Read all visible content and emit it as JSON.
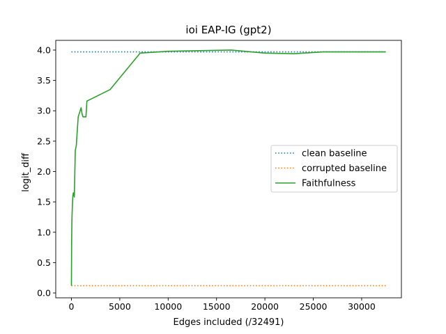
{
  "chart_data": {
    "type": "line",
    "title": "ioi EAP-IG (gpt2)",
    "xlabel": "Edges included (/32491)",
    "ylabel": "logit_diff",
    "xlim": [
      -1620,
      34110
    ],
    "ylim": [
      -0.08,
      4.16
    ],
    "xticks": [
      0,
      5000,
      10000,
      15000,
      20000,
      25000,
      30000
    ],
    "yticks": [
      0.0,
      0.5,
      1.0,
      1.5,
      2.0,
      2.5,
      3.0,
      3.5,
      4.0
    ],
    "grid": false,
    "legend_placement": "center-right",
    "series": [
      {
        "name": "clean baseline",
        "style": "dotted",
        "color": "#1f77b4",
        "x": [
          0,
          32491
        ],
        "y": [
          3.97,
          3.97
        ]
      },
      {
        "name": "corrupted baseline",
        "style": "dotted",
        "color": "#ff7f0e",
        "x": [
          0,
          32491
        ],
        "y": [
          0.12,
          0.12
        ]
      },
      {
        "name": "Faithfulness",
        "style": "solid",
        "color": "#2ca02c",
        "x": [
          0,
          20,
          50,
          100,
          150,
          200,
          250,
          300,
          400,
          500,
          700,
          900,
          1000,
          1100,
          1200,
          1500,
          1600,
          4000,
          7100,
          10000,
          16500,
          20000,
          23000,
          26000,
          32491
        ],
        "y": [
          0.12,
          0.8,
          1.2,
          1.45,
          1.6,
          1.65,
          1.62,
          1.58,
          2.35,
          2.42,
          2.9,
          3.0,
          3.05,
          2.95,
          2.9,
          2.9,
          3.16,
          3.35,
          3.95,
          3.98,
          4.0,
          3.95,
          3.94,
          3.97,
          3.97
        ]
      }
    ]
  }
}
